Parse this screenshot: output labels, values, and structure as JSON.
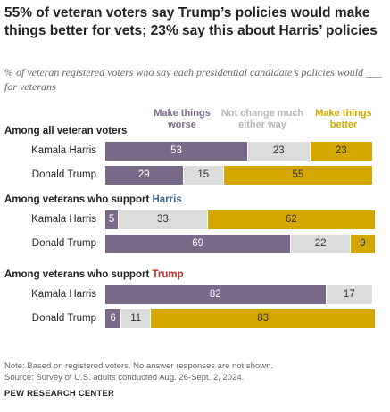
{
  "title": "55% of veteran voters say Trump’s policies would make things better for vets; 23% say this about Harris’ policies",
  "subtitle": "% of veteran registered voters who say each presidential candidate’s policies would ___ for veterans",
  "colors": {
    "worse": "#7a6a8a",
    "no_change": "#dcdcdc",
    "better": "#d4a800",
    "harris": "#3e6a8e",
    "trump": "#bf2f26"
  },
  "chart_data": {
    "type": "bar",
    "orientation": "horizontal",
    "stacked": true,
    "legend_placement": "top",
    "series": [
      {
        "key": "worse",
        "name": "Make things worse"
      },
      {
        "key": "no_change",
        "name": "Not change much either way"
      },
      {
        "key": "better",
        "name": "Make things better"
      }
    ],
    "legend_lines": {
      "worse": [
        "Make things",
        "worse"
      ],
      "no_change": [
        "Not change much",
        "either way"
      ],
      "better": [
        "Make things",
        "better"
      ]
    },
    "groups": [
      {
        "prefix": "Among all veteran voters",
        "highlight": "",
        "highlight_color": "",
        "rows": [
          {
            "label": "Kamala Harris",
            "worse": 53,
            "no_change": 23,
            "better": 23
          },
          {
            "label": "Donald Trump",
            "worse": 29,
            "no_change": 15,
            "better": 55
          }
        ]
      },
      {
        "prefix": "Among veterans who support ",
        "highlight": "Harris",
        "highlight_color": "harris",
        "rows": [
          {
            "label": "Kamala Harris",
            "worse": 5,
            "no_change": 33,
            "better": 62
          },
          {
            "label": "Donald Trump",
            "worse": 69,
            "no_change": 22,
            "better": 9
          }
        ]
      },
      {
        "prefix": "Among veterans who support ",
        "highlight": "Trump",
        "highlight_color": "trump",
        "rows": [
          {
            "label": "Kamala Harris",
            "worse": 82,
            "no_change": 17,
            "better": 0
          },
          {
            "label": "Donald Trump",
            "worse": 6,
            "no_change": 11,
            "better": 83
          }
        ]
      }
    ]
  },
  "notes": [
    "Note: Based on registered voters. No answer responses are not shown.",
    "Source: Survey of U.S. adults conducted Aug. 26-Sept. 2, 2024."
  ],
  "brand": "PEW RESEARCH CENTER"
}
